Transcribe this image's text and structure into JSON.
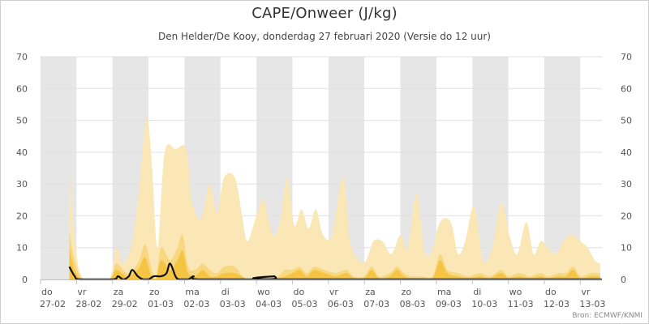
{
  "header": {
    "title": "CAPE/Onweer (J/kg)",
    "subtitle": "Den Helder/De Kooy, donderdag 27 februari 2020 (Versie do 12 uur)"
  },
  "credits": "Bron: ECMWF/KNMI",
  "colors": {
    "band_gray": "#e6e6e6",
    "band_white": "#ffffff",
    "cape_upper": "#fbe7b5",
    "cape_mid": "#f8d781",
    "cape_lower": "#f6c443",
    "thunder_line": "#111111",
    "grid": "#e0e0e0"
  },
  "chart_data": {
    "type": "area",
    "title": "CAPE/Onweer (J/kg)",
    "subtitle": "Den Helder/De Kooy, donderdag 27 februari 2020 (Versie do 12 uur)",
    "yticks": [
      0,
      10,
      20,
      30,
      40,
      50,
      60,
      70
    ],
    "ylim": [
      0,
      70
    ],
    "xlim": [
      0,
      15.6
    ],
    "day_labels": [
      {
        "day": "do",
        "date": "27-02"
      },
      {
        "day": "vr",
        "date": "28-02"
      },
      {
        "day": "za",
        "date": "29-02"
      },
      {
        "day": "zo",
        "date": "01-03"
      },
      {
        "day": "ma",
        "date": "02-03"
      },
      {
        "day": "di",
        "date": "03-03"
      },
      {
        "day": "wo",
        "date": "04-03"
      },
      {
        "day": "do",
        "date": "05-03"
      },
      {
        "day": "vr",
        "date": "06-03"
      },
      {
        "day": "za",
        "date": "07-03"
      },
      {
        "day": "zo",
        "date": "08-03"
      },
      {
        "day": "ma",
        "date": "09-03"
      },
      {
        "day": "di",
        "date": "10-03"
      },
      {
        "day": "wo",
        "date": "11-03"
      },
      {
        "day": "do",
        "date": "12-03"
      },
      {
        "day": "vr",
        "date": "13-03"
      }
    ],
    "series": [
      {
        "name": "",
        "role": "cape_upper",
        "points": [
          [
            0.8,
            35
          ],
          [
            0.95,
            12
          ],
          [
            1.2,
            0
          ],
          [
            1.9,
            0
          ],
          [
            2.1,
            10
          ],
          [
            2.3,
            5
          ],
          [
            2.55,
            12
          ],
          [
            2.75,
            30
          ],
          [
            2.95,
            51
          ],
          [
            3.1,
            35
          ],
          [
            3.25,
            10
          ],
          [
            3.45,
            40
          ],
          [
            3.75,
            41
          ],
          [
            4.05,
            41
          ],
          [
            4.2,
            25
          ],
          [
            4.45,
            19
          ],
          [
            4.7,
            30
          ],
          [
            4.9,
            21
          ],
          [
            5.1,
            32
          ],
          [
            5.4,
            32
          ],
          [
            5.6,
            20
          ],
          [
            5.75,
            12
          ],
          [
            6.0,
            20
          ],
          [
            6.2,
            25
          ],
          [
            6.45,
            14
          ],
          [
            6.65,
            18
          ],
          [
            6.85,
            32
          ],
          [
            7.05,
            17
          ],
          [
            7.25,
            22
          ],
          [
            7.45,
            16
          ],
          [
            7.65,
            22
          ],
          [
            7.85,
            14
          ],
          [
            8.1,
            14
          ],
          [
            8.4,
            32
          ],
          [
            8.6,
            12
          ],
          [
            8.85,
            6
          ],
          [
            9.05,
            6
          ],
          [
            9.25,
            12
          ],
          [
            9.5,
            12
          ],
          [
            9.75,
            8
          ],
          [
            10.0,
            14
          ],
          [
            10.2,
            10
          ],
          [
            10.45,
            27
          ],
          [
            10.65,
            10
          ],
          [
            10.85,
            8
          ],
          [
            11.1,
            18
          ],
          [
            11.4,
            18
          ],
          [
            11.6,
            8
          ],
          [
            11.8,
            12
          ],
          [
            12.05,
            23
          ],
          [
            12.3,
            6
          ],
          [
            12.55,
            10
          ],
          [
            12.8,
            24
          ],
          [
            13.05,
            13
          ],
          [
            13.25,
            8
          ],
          [
            13.5,
            18
          ],
          [
            13.7,
            8
          ],
          [
            13.9,
            12
          ],
          [
            14.1,
            10
          ],
          [
            14.3,
            8
          ],
          [
            14.6,
            13
          ],
          [
            14.8,
            14
          ],
          [
            15.0,
            12
          ],
          [
            15.2,
            10
          ],
          [
            15.4,
            6
          ],
          [
            15.55,
            5
          ]
        ]
      },
      {
        "name": "",
        "role": "cape_mid",
        "points": [
          [
            0.8,
            15
          ],
          [
            0.95,
            6
          ],
          [
            1.2,
            0
          ],
          [
            1.9,
            0
          ],
          [
            2.1,
            5
          ],
          [
            2.4,
            2
          ],
          [
            2.7,
            5
          ],
          [
            2.9,
            11
          ],
          [
            3.05,
            5
          ],
          [
            3.2,
            0
          ],
          [
            3.35,
            10
          ],
          [
            3.6,
            6
          ],
          [
            3.8,
            10
          ],
          [
            3.95,
            14
          ],
          [
            4.1,
            4
          ],
          [
            4.3,
            3
          ],
          [
            4.5,
            5
          ],
          [
            4.7,
            3
          ],
          [
            4.9,
            2
          ],
          [
            5.1,
            4
          ],
          [
            5.4,
            4
          ],
          [
            5.6,
            1
          ],
          [
            5.8,
            0
          ],
          [
            6.4,
            0
          ],
          [
            6.6,
            1
          ],
          [
            6.8,
            3
          ],
          [
            7.0,
            3
          ],
          [
            7.2,
            4
          ],
          [
            7.4,
            2
          ],
          [
            7.6,
            4
          ],
          [
            7.9,
            3
          ],
          [
            8.2,
            2
          ],
          [
            8.5,
            3
          ],
          [
            8.7,
            1
          ],
          [
            9.0,
            1
          ],
          [
            9.2,
            4
          ],
          [
            9.4,
            1
          ],
          [
            9.7,
            2
          ],
          [
            9.9,
            4
          ],
          [
            10.1,
            2
          ],
          [
            10.3,
            1
          ],
          [
            10.6,
            1
          ],
          [
            10.9,
            1
          ],
          [
            11.1,
            8
          ],
          [
            11.3,
            3
          ],
          [
            11.6,
            2
          ],
          [
            11.9,
            1
          ],
          [
            12.2,
            2
          ],
          [
            12.5,
            1
          ],
          [
            12.8,
            3
          ],
          [
            13.0,
            1
          ],
          [
            13.3,
            2
          ],
          [
            13.6,
            1
          ],
          [
            13.9,
            2
          ],
          [
            14.1,
            1
          ],
          [
            14.4,
            2
          ],
          [
            14.6,
            2
          ],
          [
            14.8,
            4
          ],
          [
            15.0,
            1
          ],
          [
            15.3,
            2
          ],
          [
            15.55,
            2
          ]
        ]
      },
      {
        "name": "",
        "role": "cape_lower",
        "points": [
          [
            0.8,
            10
          ],
          [
            0.95,
            3
          ],
          [
            1.2,
            0
          ],
          [
            1.9,
            0
          ],
          [
            2.1,
            3
          ],
          [
            2.4,
            1
          ],
          [
            2.7,
            3
          ],
          [
            2.9,
            7
          ],
          [
            3.05,
            2
          ],
          [
            3.2,
            0
          ],
          [
            3.35,
            6
          ],
          [
            3.6,
            3
          ],
          [
            3.8,
            6
          ],
          [
            3.95,
            9
          ],
          [
            4.1,
            2
          ],
          [
            4.3,
            1
          ],
          [
            4.5,
            3
          ],
          [
            4.7,
            1
          ],
          [
            4.9,
            1
          ],
          [
            5.1,
            2
          ],
          [
            5.4,
            2
          ],
          [
            5.6,
            1
          ],
          [
            5.8,
            0
          ],
          [
            6.4,
            0
          ],
          [
            6.6,
            0.5
          ],
          [
            6.8,
            1
          ],
          [
            7.0,
            2
          ],
          [
            7.2,
            3
          ],
          [
            7.4,
            1
          ],
          [
            7.6,
            3
          ],
          [
            7.9,
            2
          ],
          [
            8.2,
            1
          ],
          [
            8.5,
            2
          ],
          [
            8.7,
            0.5
          ],
          [
            9.0,
            0.5
          ],
          [
            9.2,
            3
          ],
          [
            9.4,
            0.5
          ],
          [
            9.7,
            1
          ],
          [
            9.9,
            3
          ],
          [
            10.1,
            1
          ],
          [
            10.3,
            0.5
          ],
          [
            10.6,
            0.5
          ],
          [
            10.9,
            0.5
          ],
          [
            11.1,
            6
          ],
          [
            11.3,
            2
          ],
          [
            11.6,
            1
          ],
          [
            11.9,
            0.5
          ],
          [
            12.2,
            1
          ],
          [
            12.5,
            0.5
          ],
          [
            12.8,
            2
          ],
          [
            13.0,
            0.5
          ],
          [
            13.3,
            1
          ],
          [
            13.6,
            0.5
          ],
          [
            13.9,
            1
          ],
          [
            14.1,
            0.5
          ],
          [
            14.4,
            1
          ],
          [
            14.6,
            1
          ],
          [
            14.8,
            3
          ],
          [
            15.0,
            0.5
          ],
          [
            15.3,
            1
          ],
          [
            15.55,
            1
          ]
        ]
      },
      {
        "name": "",
        "role": "thunder_line",
        "points": [
          [
            0.8,
            4
          ],
          [
            0.95,
            1
          ],
          [
            1.1,
            0
          ],
          [
            2.0,
            0
          ],
          [
            2.15,
            1
          ],
          [
            2.3,
            0
          ],
          [
            2.45,
            1
          ],
          [
            2.55,
            3
          ],
          [
            2.7,
            1
          ],
          [
            2.85,
            0
          ],
          [
            3.0,
            0
          ],
          [
            3.15,
            1
          ],
          [
            3.35,
            1
          ],
          [
            3.5,
            2
          ],
          [
            3.6,
            5
          ],
          [
            3.75,
            1
          ],
          [
            3.85,
            0
          ],
          [
            4.1,
            0
          ],
          [
            4.25,
            1
          ],
          [
            4.4,
            0
          ],
          [
            6.35,
            0
          ],
          [
            6.5,
            1
          ],
          [
            6.6,
            0
          ],
          [
            15.6,
            0
          ]
        ]
      }
    ]
  }
}
